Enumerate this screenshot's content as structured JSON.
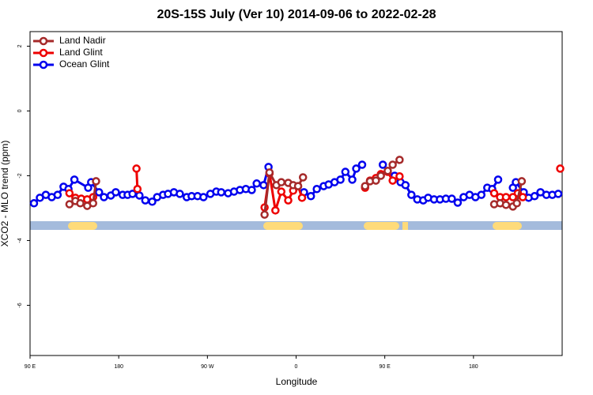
{
  "chart_data": {
    "type": "line",
    "title": "20S-15S July (Ver 10)   2014-09-06 to 2022-02-28",
    "x_label": "Longitude",
    "y_label": "XCO2 - MLO trend (ppm)",
    "xlim": [
      90,
      630
    ],
    "xticks": [
      {
        "value": 90,
        "label": "90 E"
      },
      {
        "value": 180,
        "label": "180"
      },
      {
        "value": 270,
        "label": "90 W"
      },
      {
        "value": 360,
        "label": "0"
      },
      {
        "value": 450,
        "label": "90 E"
      },
      {
        "value": 540,
        "label": "180"
      }
    ],
    "ylim": [
      -7.55,
      2.45
    ],
    "yticks": [
      2,
      0,
      -2,
      -4,
      -6
    ],
    "legend": "top-left",
    "series": [
      {
        "name": "Land Nadir",
        "color": "#a52a2a",
        "x": [
          130,
          136,
          141,
          148,
          154,
          157,
          250,
          328,
          333,
          340,
          345,
          352,
          357,
          362,
          367,
          410,
          430,
          435,
          441,
          446,
          453,
          458,
          465,
          540,
          561,
          567,
          573,
          580,
          584,
          589
        ],
        "values": [
          -2.88,
          -2.78,
          -2.85,
          -2.93,
          -2.85,
          -2.17,
          null,
          -3.2,
          -1.9,
          -2.29,
          -2.2,
          -2.22,
          -2.29,
          -2.32,
          -2.05,
          null,
          -2.32,
          -2.17,
          -2.15,
          -2.0,
          -1.85,
          -1.66,
          -1.51,
          null,
          -2.88,
          -2.85,
          -2.9,
          -2.95,
          -2.85,
          -2.17
        ]
      },
      {
        "name": "Land Glint",
        "color": "#ee0000",
        "x": [
          130,
          136,
          142,
          148,
          154,
          170,
          198,
          199,
          260,
          328,
          333,
          339,
          345,
          352,
          357,
          362,
          366,
          410,
          430,
          435,
          441,
          446,
          453,
          458,
          465,
          540,
          561,
          567,
          573,
          580,
          585,
          590,
          610,
          628
        ],
        "values": [
          -2.54,
          -2.68,
          -2.71,
          -2.73,
          -2.66,
          null,
          -1.78,
          -2.41,
          null,
          -2.98,
          -1.93,
          -3.07,
          -2.49,
          -2.76,
          -2.46,
          -2.32,
          -2.68,
          null,
          -2.37,
          -2.15,
          -2.07,
          -1.95,
          -1.88,
          -2.15,
          -2.02,
          null,
          -2.54,
          -2.66,
          -2.66,
          -2.66,
          -2.54,
          -2.66,
          null,
          -1.78
        ]
      },
      {
        "name": "Ocean Glint",
        "color": "#0000ee",
        "x": [
          94,
          100,
          106,
          112,
          118,
          124,
          129,
          135,
          149,
          152,
          160,
          165,
          172,
          177,
          184,
          189,
          194,
          201,
          207,
          214,
          219,
          225,
          230,
          236,
          242,
          249,
          254,
          260,
          266,
          273,
          279,
          284,
          291,
          297,
          303,
          309,
          315,
          320,
          327,
          332,
          350,
          368,
          375,
          381,
          388,
          393,
          399,
          405,
          410,
          417,
          421,
          427,
          437,
          448,
          454,
          460,
          466,
          471,
          477,
          483,
          489,
          494,
          500,
          506,
          512,
          518,
          524,
          530,
          536,
          542,
          548,
          554,
          559,
          565,
          573,
          580,
          583,
          591,
          596,
          602,
          608,
          614,
          620,
          626
        ],
        "values": [
          -2.85,
          -2.68,
          -2.59,
          -2.66,
          -2.59,
          -2.34,
          -2.41,
          -2.12,
          -2.37,
          -2.2,
          -2.51,
          -2.66,
          -2.61,
          -2.51,
          -2.59,
          -2.59,
          -2.56,
          -2.61,
          -2.76,
          -2.8,
          -2.66,
          -2.59,
          -2.56,
          -2.51,
          -2.56,
          -2.66,
          -2.63,
          -2.63,
          -2.66,
          -2.56,
          -2.49,
          -2.51,
          -2.54,
          -2.49,
          -2.44,
          -2.41,
          -2.44,
          -2.24,
          -2.29,
          -1.73,
          null,
          -2.51,
          -2.63,
          -2.41,
          -2.32,
          -2.27,
          -2.2,
          -2.12,
          -1.88,
          -2.12,
          -1.78,
          -1.66,
          null,
          -1.66,
          null,
          -2.0,
          -2.2,
          -2.29,
          -2.59,
          -2.73,
          -2.76,
          -2.68,
          -2.73,
          -2.73,
          -2.71,
          -2.71,
          -2.83,
          -2.66,
          -2.59,
          -2.66,
          -2.59,
          -2.37,
          -2.41,
          -2.12,
          null,
          -2.37,
          -2.2,
          -2.51,
          -2.68,
          -2.63,
          -2.51,
          -2.59,
          -2.59,
          -2.56
        ]
      }
    ]
  }
}
